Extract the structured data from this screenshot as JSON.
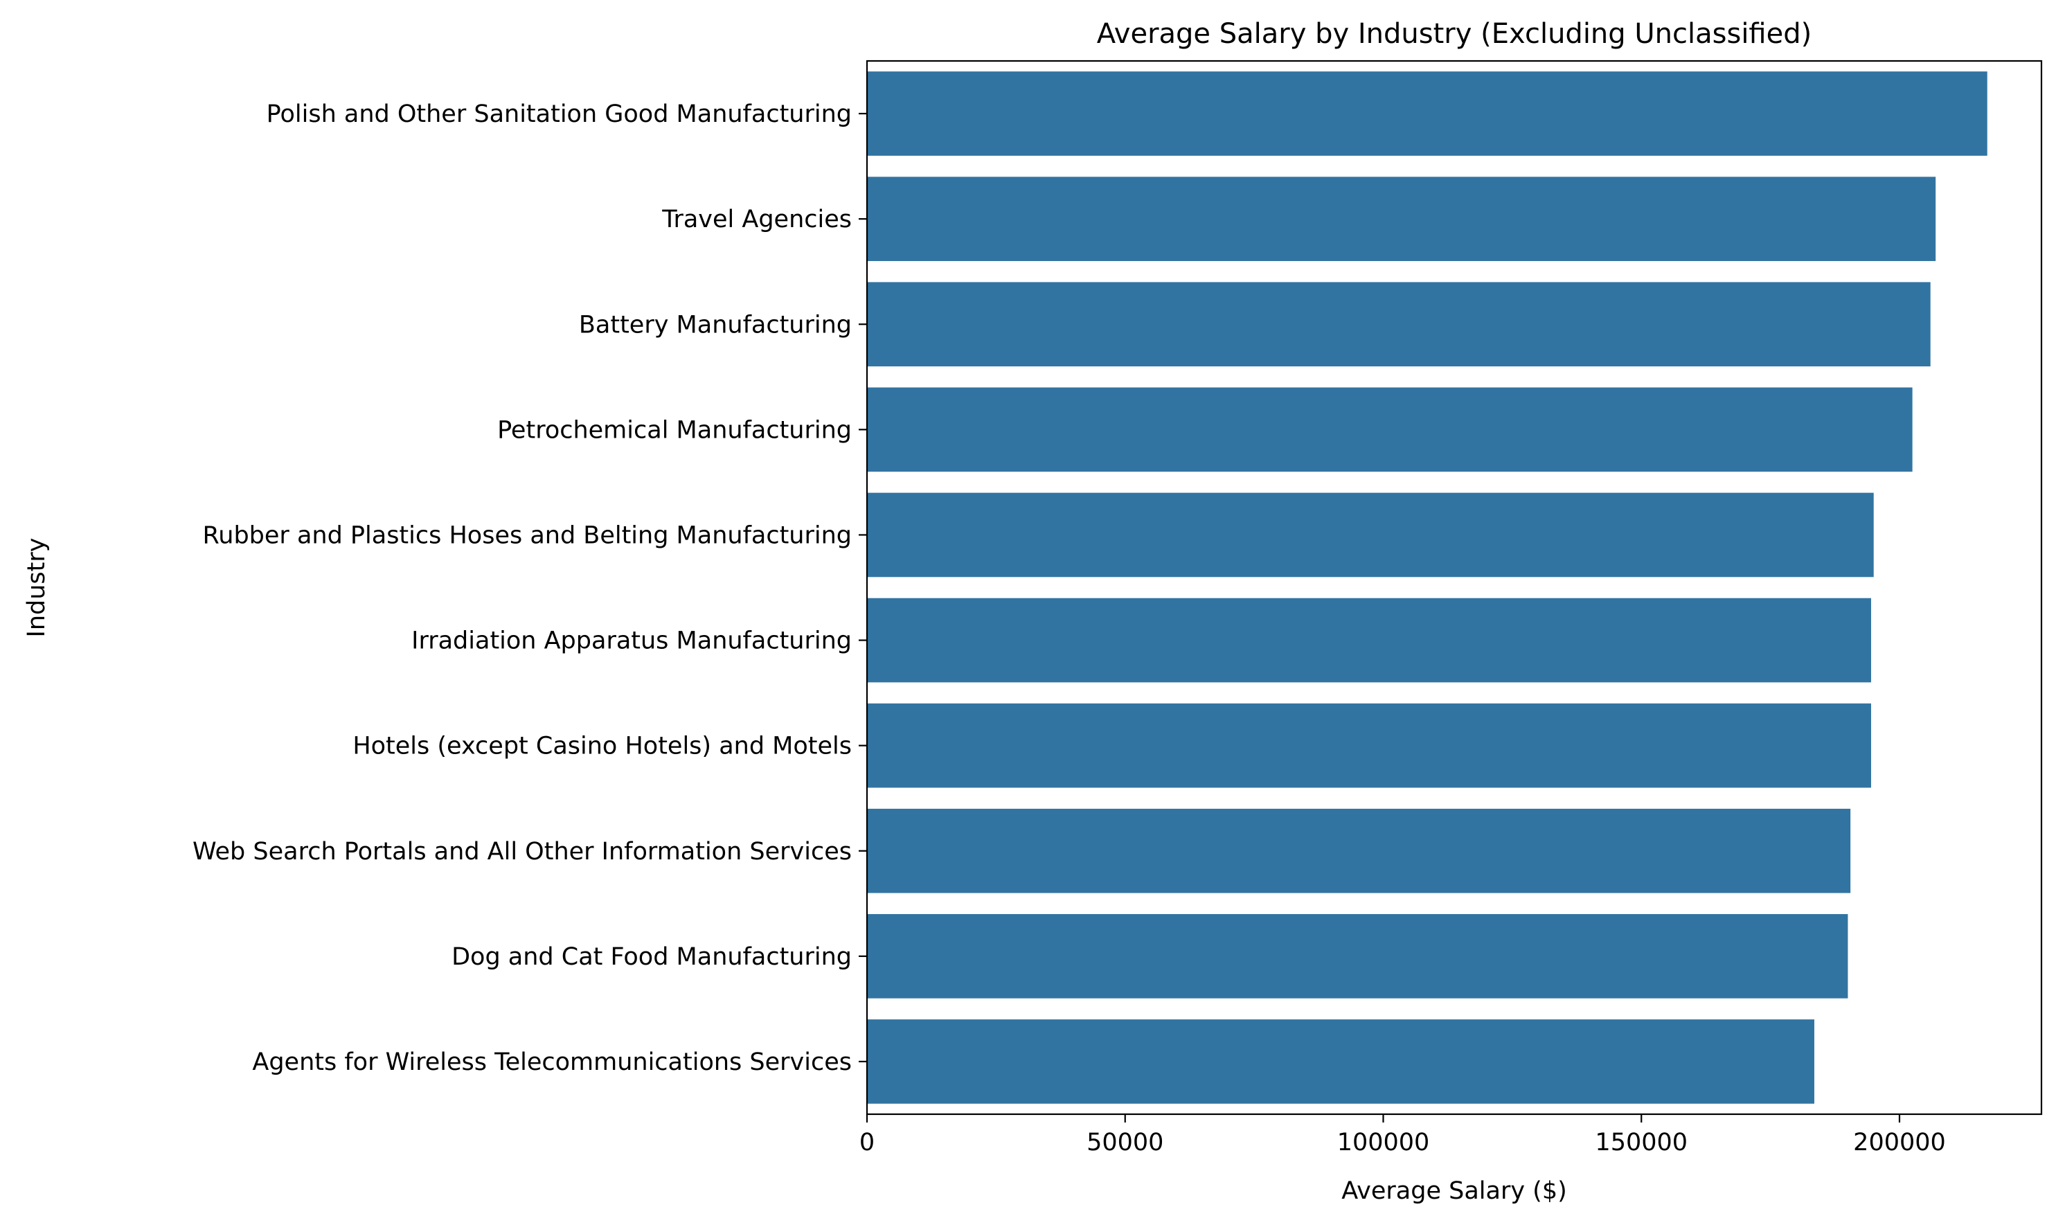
{
  "chart_data": {
    "type": "bar",
    "orientation": "horizontal",
    "title": "Average Salary by Industry (Excluding Unclassified)",
    "xlabel": "Average Salary ($)",
    "ylabel": "Industry",
    "xlim": [
      0,
      227500
    ],
    "xticks": [
      0,
      50000,
      100000,
      150000,
      200000
    ],
    "xtick_labels": [
      "0",
      "50000",
      "100000",
      "150000",
      "200000"
    ],
    "grid": false,
    "legend": "none",
    "bar_color": "#3274a1",
    "categories": [
      "Polish and Other Sanitation Good Manufacturing",
      "Travel Agencies",
      "Battery Manufacturing",
      "Petrochemical Manufacturing",
      "Rubber and Plastics Hoses and Belting Manufacturing",
      "Irradiation Apparatus Manufacturing",
      "Hotels (except Casino Hotels) and Motels",
      "Web Search Portals and All Other Information Services",
      "Dog and Cat Food Manufacturing",
      "Agents for Wireless Telecommunications Services"
    ],
    "values": [
      217000,
      207000,
      206000,
      202500,
      195000,
      194500,
      194500,
      190500,
      190000,
      183500
    ]
  }
}
